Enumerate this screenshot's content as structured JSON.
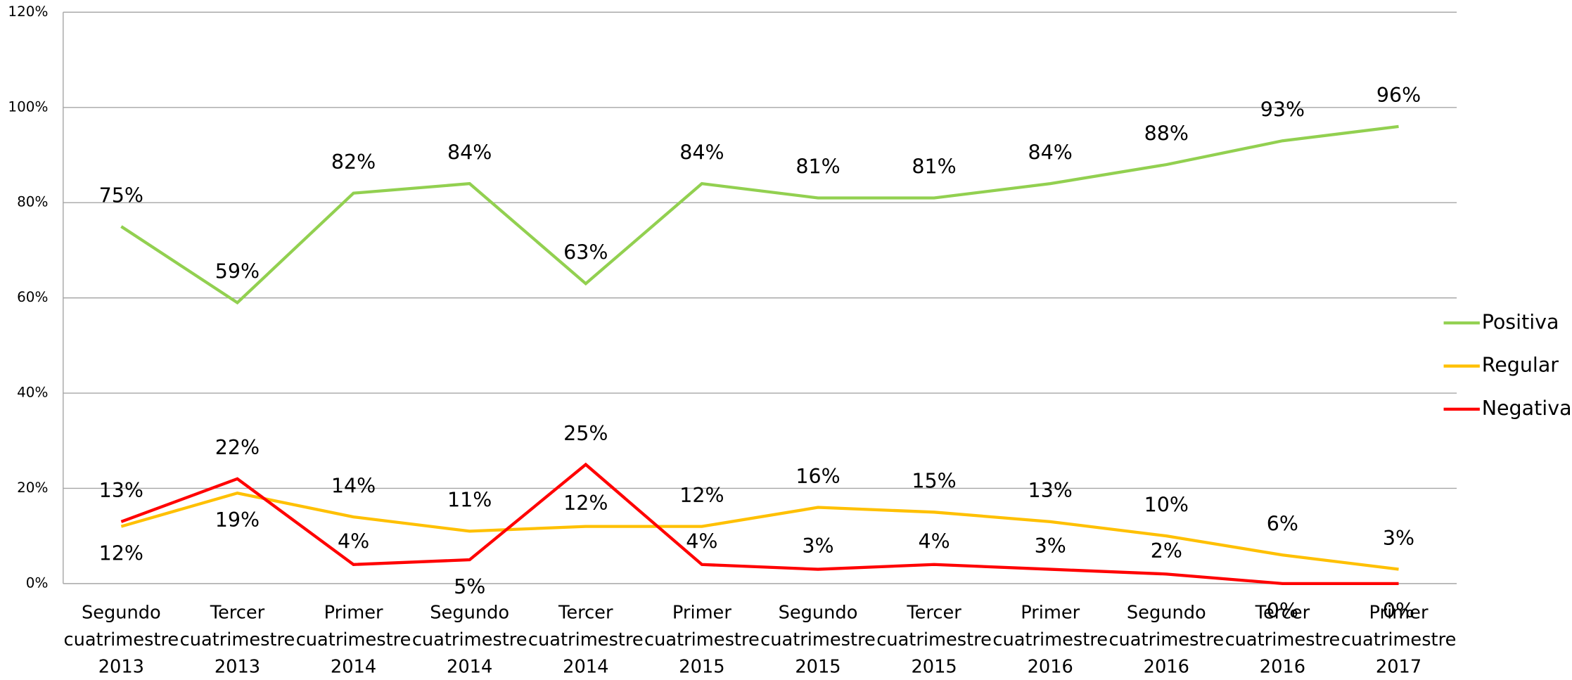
{
  "chart_data": {
    "type": "line",
    "categories": [
      [
        "Segundo",
        "cuatrimestre",
        "2013"
      ],
      [
        "Tercer",
        "cuatrimestre",
        "2013"
      ],
      [
        "Primer",
        "cuatrimestre",
        "2014"
      ],
      [
        "Segundo",
        "cuatrimestre",
        "2014"
      ],
      [
        "Tercer",
        "cuatrimestre",
        "2014"
      ],
      [
        "Primer",
        "cuatrimestre",
        "2015"
      ],
      [
        "Segundo",
        "cuatrimestre",
        "2015"
      ],
      [
        "Tercer",
        "cuatrimestre",
        "2015"
      ],
      [
        "Primer",
        "cuatrimestre",
        "2016"
      ],
      [
        "Segundo",
        "cuatrimestre",
        "2016"
      ],
      [
        "Tercer",
        "cuatrimestre",
        "2016"
      ],
      [
        "Primer",
        "cuatrimestre",
        "2017"
      ]
    ],
    "series": [
      {
        "name": "Positiva",
        "color": "#92d050",
        "values": [
          75,
          59,
          82,
          84,
          63,
          84,
          81,
          81,
          84,
          88,
          93,
          96
        ],
        "value_labels": [
          "75%",
          "59%",
          "82%",
          "84%",
          "63%",
          "84%",
          "81%",
          "81%",
          "84%",
          "88%",
          "93%",
          "96%"
        ]
      },
      {
        "name": "Regular",
        "color": "#ffc000",
        "values": [
          12,
          19,
          14,
          11,
          12,
          12,
          16,
          15,
          13,
          10,
          6,
          3
        ],
        "value_labels": [
          "12%",
          "19%",
          "14%",
          "11%",
          "12%",
          "12%",
          "16%",
          "15%",
          "13%",
          "10%",
          "6%",
          "3%"
        ]
      },
      {
        "name": "Negativa",
        "color": "#ff0000",
        "values": [
          13,
          22,
          4,
          5,
          25,
          4,
          3,
          4,
          3,
          2,
          0,
          0
        ],
        "value_labels": [
          "13%",
          "22%",
          "4%",
          "5%",
          "25%",
          "4%",
          "3%",
          "4%",
          "3%",
          "2%",
          "0%",
          "0%"
        ]
      }
    ],
    "ylim": [
      0,
      120
    ],
    "yticks": [
      {
        "value": 0,
        "label": "0%"
      },
      {
        "value": 20,
        "label": "20%"
      },
      {
        "value": 40,
        "label": "40%"
      },
      {
        "value": 60,
        "label": "60%"
      },
      {
        "value": 80,
        "label": "80%"
      },
      {
        "value": 100,
        "label": "100%"
      },
      {
        "value": 120,
        "label": "120%"
      }
    ],
    "grid": true,
    "legend": "right"
  }
}
